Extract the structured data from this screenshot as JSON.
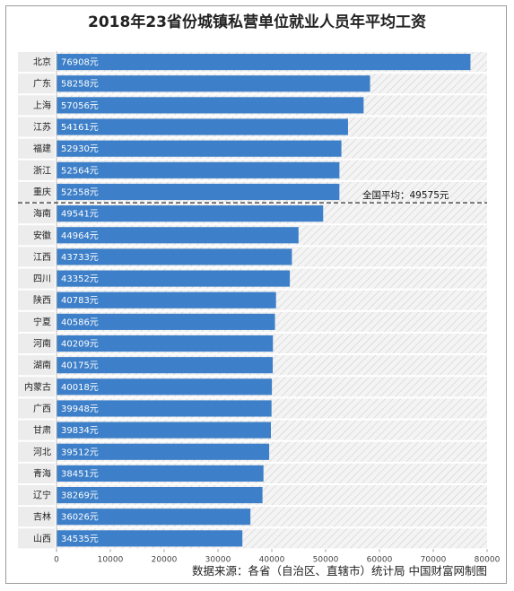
{
  "chart_data": {
    "type": "bar",
    "orientation": "horizontal",
    "title": "2018年23省份城镇私营单位就业人员年平均工资",
    "categories": [
      "北京",
      "广东",
      "上海",
      "江苏",
      "福建",
      "浙江",
      "重庆",
      "海南",
      "安徽",
      "江西",
      "四川",
      "陕西",
      "宁夏",
      "河南",
      "湖南",
      "内蒙古",
      "广西",
      "甘肃",
      "河北",
      "青海",
      "辽宁",
      "吉林",
      "山西"
    ],
    "values": [
      76908,
      58258,
      57056,
      54161,
      52930,
      52564,
      52558,
      49541,
      44964,
      43733,
      43352,
      40783,
      40586,
      40209,
      40175,
      40018,
      39948,
      39834,
      39512,
      38451,
      38269,
      36026,
      34535
    ],
    "value_labels": [
      "76908元",
      "58258元",
      "57056元",
      "54161元",
      "52930元",
      "52564元",
      "52558元",
      "49541元",
      "44964元",
      "43733元",
      "43352元",
      "40783元",
      "40586元",
      "40209元",
      "40175元",
      "40018元",
      "39948元",
      "39834元",
      "39512元",
      "38451元",
      "38269元",
      "36026元",
      "34535元"
    ],
    "xlim": [
      0,
      80000
    ],
    "xticks": [
      0,
      10000,
      20000,
      30000,
      40000,
      50000,
      60000,
      70000,
      80000
    ],
    "xtick_labels": [
      "0",
      "10000",
      "20000",
      "30000",
      "40000",
      "50000",
      "60000",
      "70000",
      "80000"
    ],
    "bar_color": "#3d7fc8",
    "average": {
      "value": 49575,
      "label": "全国平均：49575元"
    },
    "source": "数据来源：各省（自治区、直辖市）统计局 中国财富网制图"
  }
}
